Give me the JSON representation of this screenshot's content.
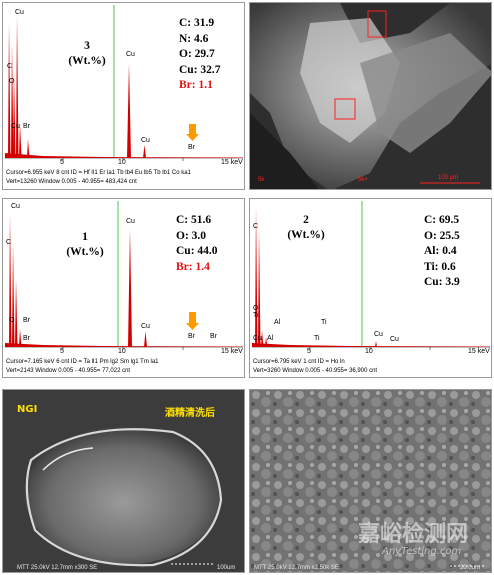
{
  "panels": {
    "eds3": {
      "label_num": "3",
      "label_unit": "(Wt.%)",
      "comp": [
        {
          "text": "C: 31.9",
          "red": false
        },
        {
          "text": "N: 4.6",
          "red": false
        },
        {
          "text": "O: 29.7",
          "red": false
        },
        {
          "text": "Cu: 32.7",
          "red": false
        },
        {
          "text": "Br: 1.1",
          "red": true
        }
      ],
      "elements": [
        "Cu",
        "C",
        "O",
        "Cu",
        "Br",
        "Cu",
        "Cu",
        "Br"
      ],
      "axis_labels": [
        "5",
        "10",
        "15 keV"
      ],
      "cursor_line1": "Cursor=6.955 keV   8 cnt   ID = Hf lI1 Er la1 Tb lb4 Eu lb5 Tb lb1 Co ka1",
      "cursor_line2": "Vert=13260          Window 0.005 - 40.955=  483,424 cnt"
    },
    "sem_top": {
      "footer_left": "5k",
      "footer_mid": "5k×",
      "footer_right": "100 μm"
    },
    "eds1": {
      "label_num": "1",
      "label_unit": "(Wt.%)",
      "comp": [
        {
          "text": "C: 51.6",
          "red": false
        },
        {
          "text": "O: 3.0",
          "red": false
        },
        {
          "text": "Cu: 44.0",
          "red": false
        },
        {
          "text": "Br: 1.4",
          "red": true
        }
      ],
      "elements": [
        "Cu",
        "C",
        "O",
        "Br",
        "Cu",
        "Cu",
        "Br",
        "Br",
        "Br"
      ],
      "axis_labels": [
        "5",
        "10",
        "15 keV"
      ],
      "cursor_line1": "Cursor=7.165 keV   6 cnt   ID = Ta lI1 Pm lg2 Sm lg1 Tm la1",
      "cursor_line2": "Vert=2143           Window 0.005 - 40.955=  77,022 cnt"
    },
    "eds2": {
      "label_num": "2",
      "label_unit": "(Wt.%)",
      "comp": [
        {
          "text": "C: 69.5",
          "red": false
        },
        {
          "text": "O: 25.5",
          "red": false
        },
        {
          "text": "Al: 0.4",
          "red": false
        },
        {
          "text": "Ti: 0.6",
          "red": false
        },
        {
          "text": "Cu: 3.9",
          "red": false
        }
      ],
      "elements": [
        "C",
        "O",
        "Ti",
        "Cu",
        "Al",
        "Al",
        "Ti",
        "Ti",
        "Cu",
        "Cu"
      ],
      "axis_labels": [
        "5",
        "10",
        "15 keV"
      ],
      "cursor_line1": "Cursor=6.795 keV   1 cnt   ID = Ho ln",
      "cursor_line2": "Vert=3260           Window 0.005 - 40.955=  36,900 cnt"
    },
    "sem_ngi": {
      "tag_left": "NGI",
      "tag_right": "酒精清洗后",
      "footer": "MTT 25.0kV 12.7mm x300 SE",
      "scale": "100um"
    },
    "sem_zoom": {
      "footer": "MTT 25.0kV 12.7mm x2.50k SE",
      "scale": "20.0um",
      "watermark_cn": "嘉峪检测网",
      "watermark_en": "AnyTesting.com"
    }
  },
  "colors": {
    "peak": "#d40000",
    "accent_red": "#e01010",
    "green_line": "#38c038",
    "arrow": "#ff9900"
  }
}
